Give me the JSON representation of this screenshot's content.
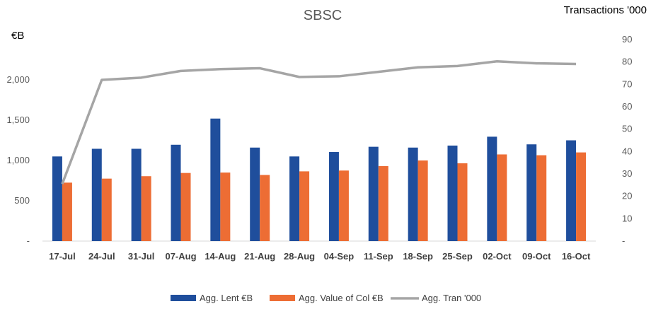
{
  "chart_data": {
    "type": "bar",
    "title": "SBSC",
    "left_axis_unit": "€B",
    "right_axis_unit": "Transactions '000",
    "categories": [
      "17-Jul",
      "24-Jul",
      "31-Jul",
      "07-Aug",
      "14-Aug",
      "21-Aug",
      "28-Aug",
      "04-Sep",
      "11-Sep",
      "18-Sep",
      "25-Sep",
      "02-Oct",
      "09-Oct",
      "16-Oct"
    ],
    "left_axis": {
      "ylim": [
        0,
        2500
      ],
      "ticks": [
        0,
        500,
        1000,
        1500,
        2000
      ],
      "tick_labels": [
        "-",
        "500",
        "1,000",
        "1,500",
        "2,000"
      ]
    },
    "right_axis": {
      "ylim": [
        0,
        90
      ],
      "ticks": [
        0,
        10,
        20,
        30,
        40,
        50,
        60,
        70,
        80,
        90
      ],
      "tick_labels": [
        "-",
        "10",
        "20",
        "30",
        "40",
        "50",
        "60",
        "70",
        "80",
        "90"
      ]
    },
    "series": [
      {
        "name": "Agg. Lent €B",
        "type": "bar",
        "axis": "left",
        "color": "#1F4E9C",
        "values": [
          1050,
          1145,
          1145,
          1195,
          1520,
          1160,
          1050,
          1105,
          1170,
          1160,
          1185,
          1295,
          1200,
          1250
        ]
      },
      {
        "name": "Agg. Value of Col €B",
        "type": "bar",
        "axis": "left",
        "color": "#ED6D34",
        "values": [
          725,
          775,
          805,
          845,
          850,
          820,
          865,
          875,
          930,
          1000,
          965,
          1075,
          1065,
          1100
        ]
      },
      {
        "name": "Agg. Tran '000",
        "type": "line",
        "axis": "right",
        "color": "#A5A5A5",
        "values": [
          25.5,
          72,
          73,
          76,
          76.8,
          77.2,
          73.3,
          73.6,
          75.6,
          77.6,
          78.2,
          80.3,
          79.4,
          79.1
        ]
      }
    ],
    "grid": false,
    "legend_position": "bottom"
  }
}
